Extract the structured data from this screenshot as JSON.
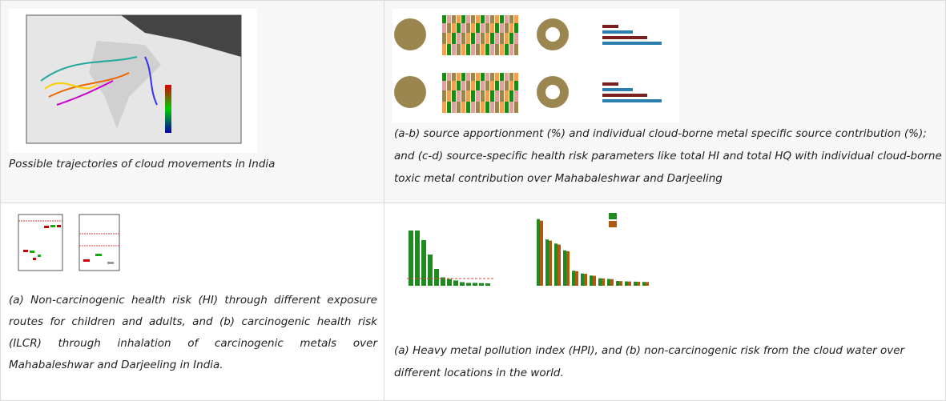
{
  "cells": [
    {
      "caption": "Possible trajectories of cloud movements in India",
      "figure": "cloud-trajectory-map"
    },
    {
      "caption": "(a-b) source apportionment (%) and individual cloud-borne metal specific source contribution (%); and (c-d) source-specific health risk parameters like total HI and total HQ with individual cloud-borne toxic metal contribution over Mahabaleshwar and Darjeeling",
      "figure": "source-apportionment-figure"
    },
    {
      "caption": "(a) Non-carcinogenic health risk (HI) through different exposure routes for children and adults, and (b) carcinogenic health risk (ILCR) through inhalation of carcinogenic metals over Mahabaleshwar and Darjeeling in India.",
      "figure": "health-risk-figure"
    },
    {
      "caption": "(a) Heavy metal pollution index (HPI), and (b) non-carcinogenic risk from the cloud water over different locations in the world.",
      "figure": "hpi-figure"
    }
  ],
  "colors": {
    "green": "#1f8a1f",
    "brown": "#b05a10",
    "threshold": "#e04040"
  }
}
